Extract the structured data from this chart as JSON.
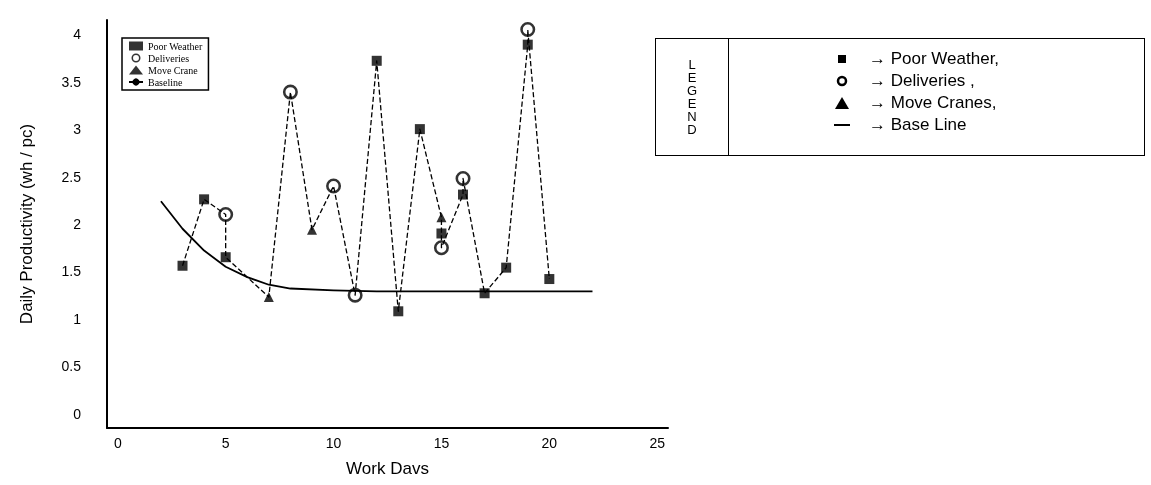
{
  "chart_data": {
    "type": "scatter",
    "xlabel": "Work Davs",
    "ylabel": "Daily Productivity (wh / pc)",
    "xlim": [
      -0.5,
      25.5
    ],
    "xticks": [
      0,
      5,
      10,
      15,
      20,
      25
    ],
    "ylim": [
      -0.15,
      4.15
    ],
    "yticks": [
      0,
      0.5,
      1,
      1.5,
      2,
      2.5,
      3,
      3.5,
      4
    ],
    "grid": false,
    "legend": "top left",
    "series": [
      {
        "name": "Poor Weather",
        "type": "scatter",
        "marker": "square",
        "color": "#000000",
        "x": [
          3,
          4,
          5,
          12,
          13,
          14,
          15,
          16,
          17,
          18,
          19,
          20
        ],
        "values": [
          1.56,
          2.26,
          1.65,
          3.72,
          1.08,
          3.0,
          1.9,
          2.31,
          1.27,
          1.54,
          3.89,
          1.42
        ]
      },
      {
        "name": "Deliveries",
        "type": "scatter",
        "marker": "circle",
        "color": "#000000",
        "x": [
          5,
          8,
          10,
          11,
          15,
          16,
          19
        ],
        "values": [
          2.1,
          3.39,
          2.4,
          1.25,
          1.75,
          2.48,
          4.05
        ]
      },
      {
        "name": "Move Crane",
        "type": "scatter",
        "marker": "triangle",
        "color": "#000000",
        "x": [
          7,
          9,
          15
        ],
        "values": [
          1.23,
          1.94,
          2.07
        ]
      },
      {
        "name": "Baseline",
        "type": "line",
        "marker": "none",
        "line_style": "solid",
        "color": "#000000",
        "x": [
          2,
          3,
          4,
          5,
          6,
          7,
          8,
          10,
          12,
          16,
          22
        ],
        "values": [
          2.24,
          1.95,
          1.72,
          1.55,
          1.44,
          1.36,
          1.32,
          1.3,
          1.29,
          1.29,
          1.29
        ]
      },
      {
        "type": "line",
        "marker": "none",
        "line_style": "dashed",
        "color": "#000000",
        "x": [
          3,
          4,
          5,
          5,
          7,
          8,
          9,
          10,
          11,
          12,
          13,
          14,
          15,
          15,
          15,
          16,
          16,
          17,
          18,
          19,
          19,
          20
        ],
        "values": [
          1.56,
          2.26,
          2.1,
          1.65,
          1.23,
          3.39,
          1.94,
          2.4,
          1.25,
          3.72,
          1.08,
          3.0,
          2.07,
          1.9,
          1.75,
          2.31,
          2.48,
          1.27,
          1.54,
          3.89,
          4.05,
          1.42
        ]
      }
    ],
    "annotations": [
      "LEGEND",
      "→   Poor Weather,",
      "→   Deliveries ,",
      "→   Move Cranes,",
      "→   Base Line"
    ]
  }
}
